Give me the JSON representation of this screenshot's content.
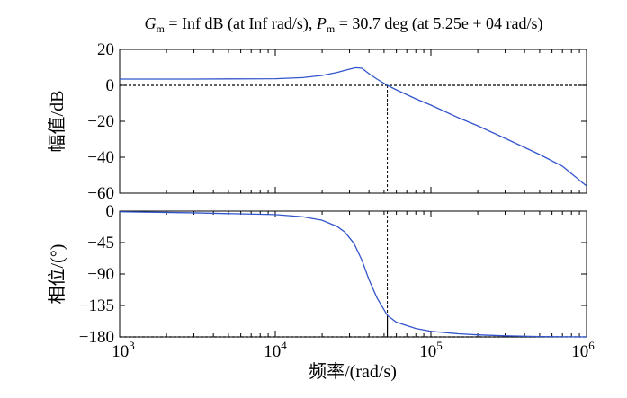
{
  "chart_data": {
    "type": "line",
    "title": {
      "gm_symbol": "G",
      "gm_sub": "m",
      "gm_text": " = Inf dB (at Inf rad/s), ",
      "pm_symbol": "P",
      "pm_sub": "m",
      "pm_text": " = 30.7 deg (at 5.25e + 04 rad/s)"
    },
    "xlabel": "频率/(rad/s)",
    "xscale": "log",
    "xlim": [
      1000,
      1000000
    ],
    "xticks": [
      {
        "base": "10",
        "exp": "3",
        "value": 1000
      },
      {
        "base": "10",
        "exp": "4",
        "value": 10000
      },
      {
        "base": "10",
        "exp": "5",
        "value": 100000
      },
      {
        "base": "10",
        "exp": "6",
        "value": 1000000
      }
    ],
    "color": "#3355cc",
    "phase_margin_frequency": 52500,
    "panels": [
      {
        "ylabel": "幅值/dB",
        "ylim": [
          -60,
          20
        ],
        "yticks": [
          "20",
          "0",
          "−20",
          "−40",
          "−60"
        ],
        "ytick_values": [
          20,
          0,
          -20,
          -40,
          -60
        ],
        "reference_line": 0,
        "series": [
          {
            "x": [
              1000,
              3000,
              10000,
              15000,
              20000,
              25000,
              30000,
              33000,
              36000,
              40000,
              45000,
              52500,
              60000,
              80000,
              100000,
              150000,
              200000,
              300000,
              500000,
              700000,
              1000000
            ],
            "y": [
              3.5,
              3.5,
              3.7,
              4.3,
              5.5,
              7.2,
              9.0,
              9.8,
              9.5,
              6.5,
              3.5,
              0,
              -2.5,
              -7.5,
              -11,
              -18,
              -22.5,
              -29.5,
              -38.5,
              -45,
              -56
            ]
          }
        ]
      },
      {
        "ylabel": "相位/(°)",
        "ylim": [
          -180,
          0
        ],
        "yticks": [
          "0",
          "−45",
          "−90",
          "−135",
          "−180"
        ],
        "ytick_values": [
          0,
          -45,
          -90,
          -135,
          -180
        ],
        "reference_line": -180,
        "series": [
          {
            "x": [
              1000,
              3000,
              10000,
              15000,
              20000,
              25000,
              28000,
              32000,
              36000,
              40000,
              45000,
              52500,
              60000,
              80000,
              100000,
              150000,
              200000,
              300000,
              500000,
              1000000
            ],
            "y": [
              -1,
              -2.5,
              -5,
              -8,
              -13,
              -22,
              -30,
              -46,
              -70,
              -98,
              -124,
              -149.3,
              -159,
              -168,
              -172,
              -175.5,
              -177,
              -178.5,
              -179.5,
              -180
            ]
          }
        ]
      }
    ]
  }
}
